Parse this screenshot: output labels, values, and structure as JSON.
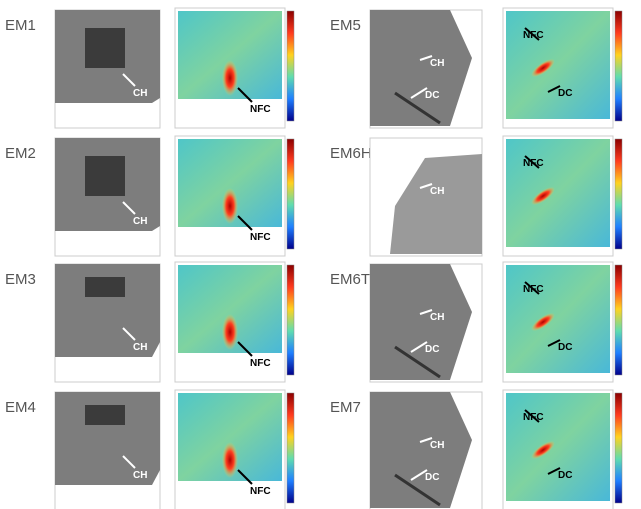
{
  "panels": [
    {
      "label": "EM1",
      "ct_labels": [
        "CH"
      ],
      "map_labels": [
        "NFC"
      ]
    },
    {
      "label": "EM2",
      "ct_labels": [
        "CH"
      ],
      "map_labels": [
        "NFC"
      ]
    },
    {
      "label": "EM3",
      "ct_labels": [
        "CH"
      ],
      "map_labels": [
        "NFC"
      ]
    },
    {
      "label": "EM4",
      "ct_labels": [
        "CH"
      ],
      "map_labels": [
        "NFC"
      ]
    },
    {
      "label": "EM5",
      "ct_labels": [
        "CH",
        "DC"
      ],
      "map_labels": [
        "NFC",
        "DC"
      ]
    },
    {
      "label": "EM6H",
      "ct_labels": [
        "CH"
      ],
      "map_labels": [
        "NFC"
      ]
    },
    {
      "label": "EM6T",
      "ct_labels": [
        "CH",
        "DC"
      ],
      "map_labels": [
        "NFC",
        "DC"
      ]
    },
    {
      "label": "EM7",
      "ct_labels": [
        "CH",
        "DC"
      ],
      "map_labels": [
        "NFC",
        "DC"
      ]
    }
  ]
}
